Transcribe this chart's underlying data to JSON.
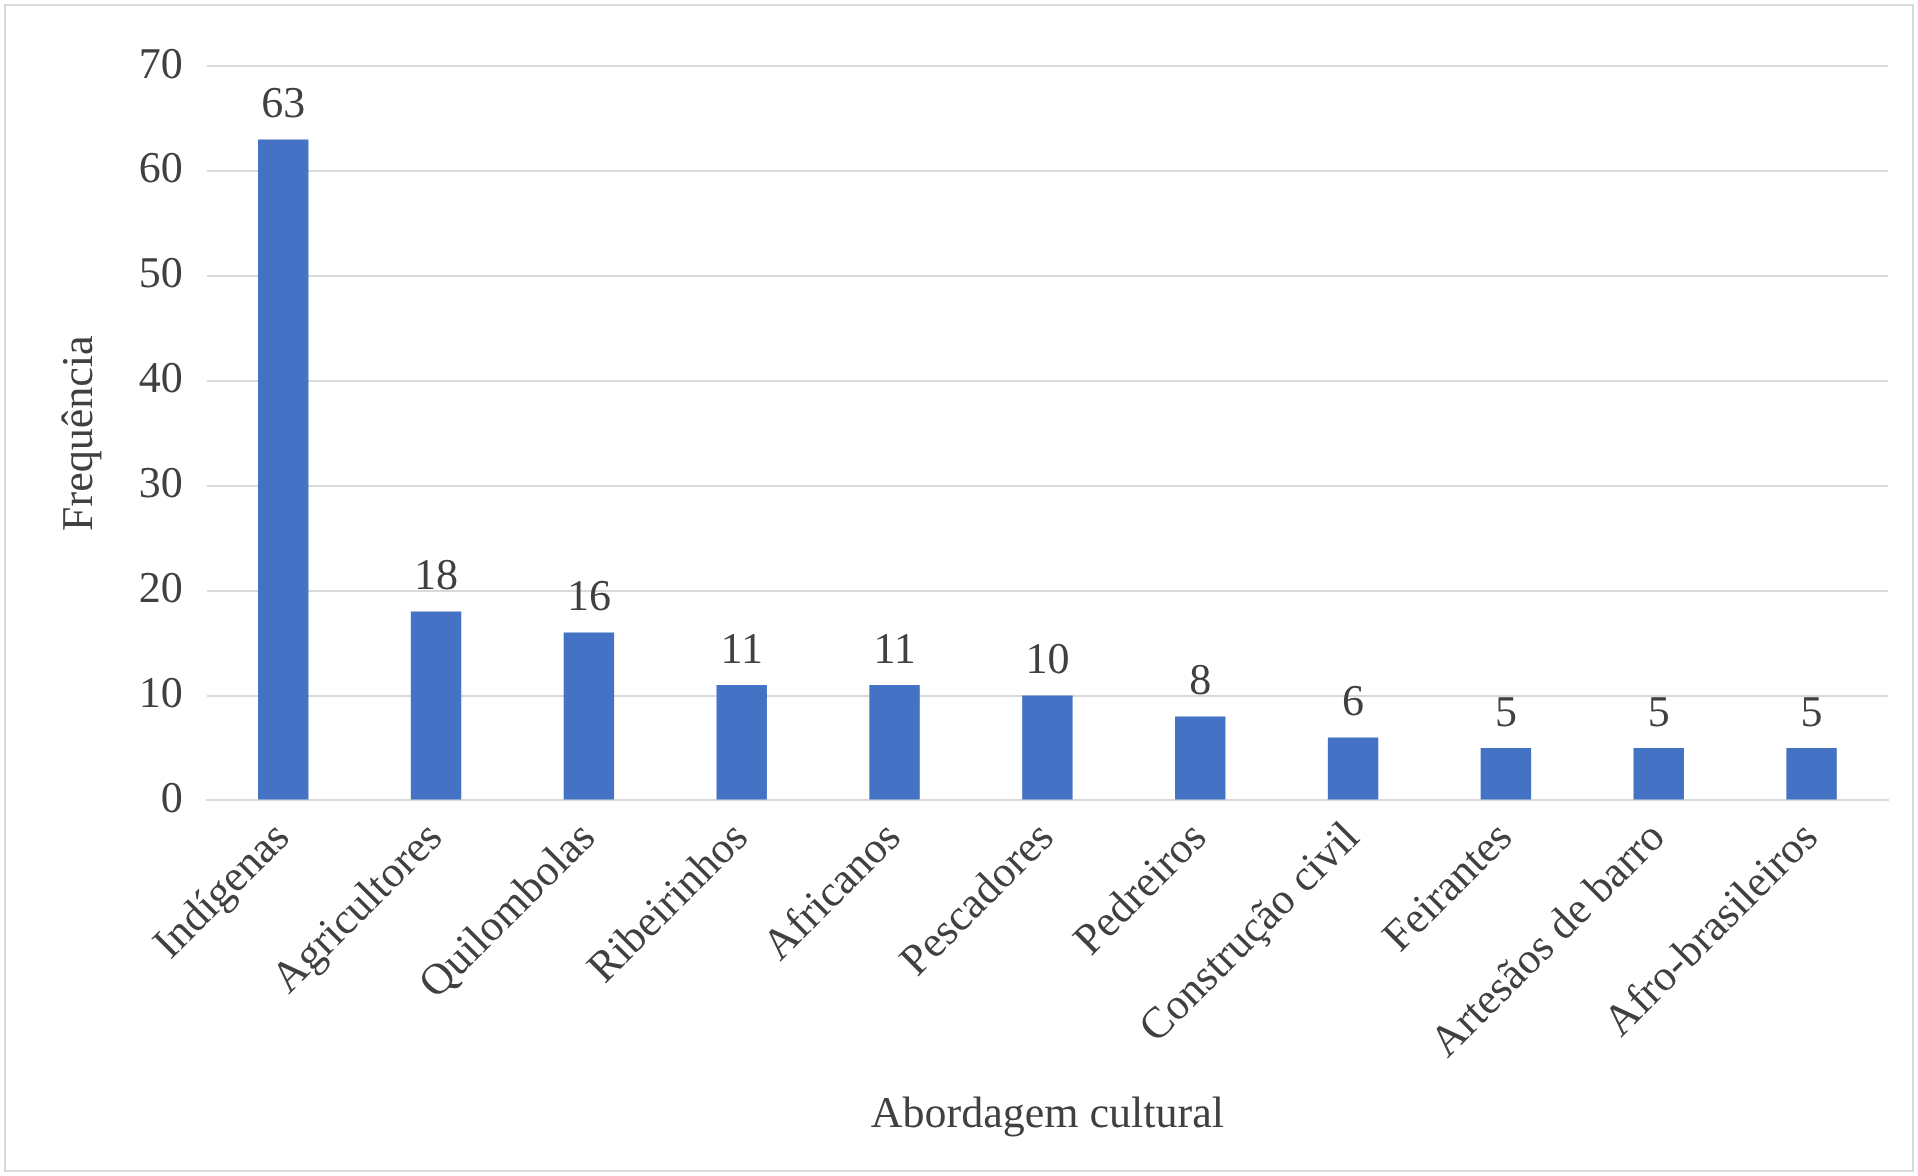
{
  "chart_data": {
    "type": "bar",
    "xlabel": "Abordagem cultural",
    "ylabel": "Frequência",
    "categories": [
      "Indígenas",
      "Agricultores",
      "Quilombolas",
      "Ribeirinhos",
      "Africanos",
      "Pescadores",
      "Pedreiros",
      "Construção civil",
      "Feirantes",
      "Artesãos de barro",
      "Afro-brasileiros"
    ],
    "values": [
      63,
      18,
      16,
      11,
      11,
      10,
      8,
      6,
      5,
      5,
      5
    ],
    "color": "#4472c4",
    "ylim": [
      0,
      70
    ],
    "yticks": [
      0,
      10,
      20,
      30,
      40,
      50,
      60,
      70
    ],
    "grid": "y",
    "data_labels": true,
    "legend": false
  }
}
